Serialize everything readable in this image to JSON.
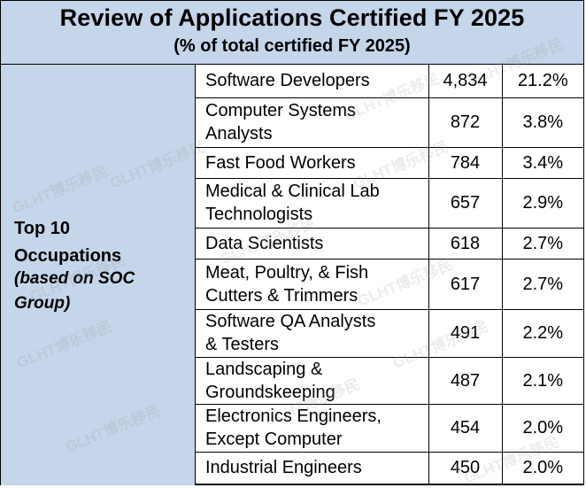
{
  "header": {
    "title": "Review of Applications Certified FY 2025",
    "subtitle": "(% of total certified FY 2025)"
  },
  "side": {
    "label_line1": "Top 10",
    "label_line2": "Occupations",
    "note_line1": "(based on SOC",
    "note_line2": "Group)"
  },
  "rows": [
    {
      "occupation_line1": "Software Developers",
      "occupation_line2": "",
      "count": "4,834",
      "percent": "21.2%"
    },
    {
      "occupation_line1": "Computer Systems",
      "occupation_line2": "Analysts",
      "count": "872",
      "percent": "3.8%"
    },
    {
      "occupation_line1": "Fast Food Workers",
      "occupation_line2": "",
      "count": "784",
      "percent": "3.4%"
    },
    {
      "occupation_line1": "Medical & Clinical Lab",
      "occupation_line2": "Technologists",
      "count": "657",
      "percent": "2.9%"
    },
    {
      "occupation_line1": "Data Scientists",
      "occupation_line2": "",
      "count": "618",
      "percent": "2.7%"
    },
    {
      "occupation_line1": "Meat, Poultry, & Fish",
      "occupation_line2": "Cutters & Trimmers",
      "count": "617",
      "percent": "2.7%"
    },
    {
      "occupation_line1": "Software QA Analysts",
      "occupation_line2": "& Testers",
      "count": "491",
      "percent": "2.2%"
    },
    {
      "occupation_line1": "Landscaping &",
      "occupation_line2": "Groundskeeping",
      "count": "487",
      "percent": "2.1%"
    },
    {
      "occupation_line1": "Electronics Engineers,",
      "occupation_line2": "Except Computer",
      "count": "454",
      "percent": "2.0%"
    },
    {
      "occupation_line1": "Industrial Engineers",
      "occupation_line2": "",
      "count": "450",
      "percent": "2.0%"
    }
  ],
  "watermark": "GLHT博乐移民"
}
